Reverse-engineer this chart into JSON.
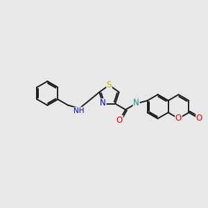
{
  "bg": "#e8e8e8",
  "bond_color": "#1a1a1a",
  "bond_lw": 1.4,
  "atom_S_color": "#b8b800",
  "atom_N_color": "#0000e0",
  "atom_O_color": "#e00000",
  "atom_N_amide_color": "#1a8a8a",
  "BL": 0.58,
  "figsize": [
    3.0,
    3.0
  ],
  "dpi": 100,
  "xlim": [
    0,
    10
  ],
  "ylim": [
    0,
    10
  ]
}
